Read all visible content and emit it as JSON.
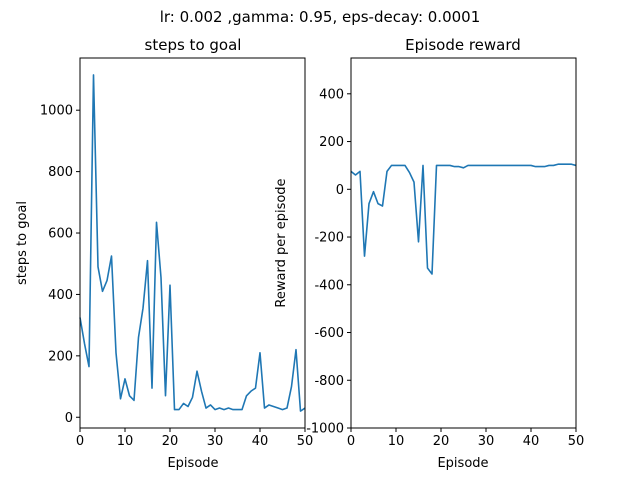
{
  "figure": {
    "suptitle": "lr: 0.002 ,gamma: 0.95, eps-decay: 0.0001"
  },
  "chart_data": [
    {
      "type": "line",
      "title": "steps to goal",
      "xlabel": "Episode",
      "ylabel": "steps to goal",
      "xlim": [
        0,
        50
      ],
      "ylim": [
        -35,
        1170
      ],
      "xticks": [
        0,
        10,
        20,
        30,
        40,
        50
      ],
      "yticks": [
        0,
        200,
        400,
        600,
        800,
        1000
      ],
      "color": "#1f77b4",
      "grid": false,
      "series": [
        {
          "x": [
            0,
            1,
            2,
            3,
            4,
            5,
            6,
            7,
            8,
            9,
            10,
            11,
            12,
            13,
            14,
            15,
            16,
            17,
            18,
            19,
            20,
            21,
            22,
            23,
            24,
            25,
            26,
            27,
            28,
            29,
            30,
            31,
            32,
            33,
            34,
            35,
            36,
            37,
            38,
            39,
            40,
            41,
            42,
            43,
            44,
            45,
            46,
            47,
            48,
            49,
            50
          ],
          "values": [
            325,
            240,
            165,
            1115,
            490,
            410,
            445,
            525,
            210,
            60,
            125,
            70,
            55,
            260,
            355,
            510,
            95,
            635,
            455,
            70,
            430,
            25,
            25,
            45,
            35,
            65,
            150,
            85,
            30,
            40,
            25,
            30,
            25,
            30,
            25,
            25,
            25,
            70,
            85,
            95,
            210,
            30,
            40,
            35,
            30,
            25,
            30,
            100,
            220,
            20,
            30
          ]
        }
      ]
    },
    {
      "type": "line",
      "title": "Episode reward",
      "xlabel": "Episode",
      "ylabel": "Reward per episode",
      "xlim": [
        0,
        50
      ],
      "ylim": [
        -1000,
        550
      ],
      "xticks": [
        0,
        10,
        20,
        30,
        40,
        50
      ],
      "yticks": [
        -1000,
        -800,
        -600,
        -400,
        -200,
        0,
        200,
        400
      ],
      "color": "#1f77b4",
      "grid": false,
      "series": [
        {
          "x": [
            0,
            1,
            2,
            3,
            4,
            5,
            6,
            7,
            8,
            9,
            10,
            11,
            12,
            13,
            14,
            15,
            16,
            17,
            18,
            19,
            20,
            21,
            22,
            23,
            24,
            25,
            26,
            27,
            28,
            29,
            30,
            31,
            32,
            33,
            34,
            35,
            36,
            37,
            38,
            39,
            40,
            41,
            42,
            43,
            44,
            45,
            46,
            47,
            48,
            49,
            50
          ],
          "values": [
            75,
            60,
            75,
            -280,
            -60,
            -10,
            -60,
            -70,
            75,
            100,
            100,
            100,
            100,
            70,
            30,
            -220,
            100,
            -330,
            -355,
            100,
            100,
            100,
            100,
            95,
            95,
            90,
            100,
            100,
            100,
            100,
            100,
            100,
            100,
            100,
            100,
            100,
            100,
            100,
            100,
            100,
            100,
            95,
            95,
            95,
            100,
            100,
            105,
            105,
            105,
            105,
            100
          ]
        }
      ]
    }
  ]
}
